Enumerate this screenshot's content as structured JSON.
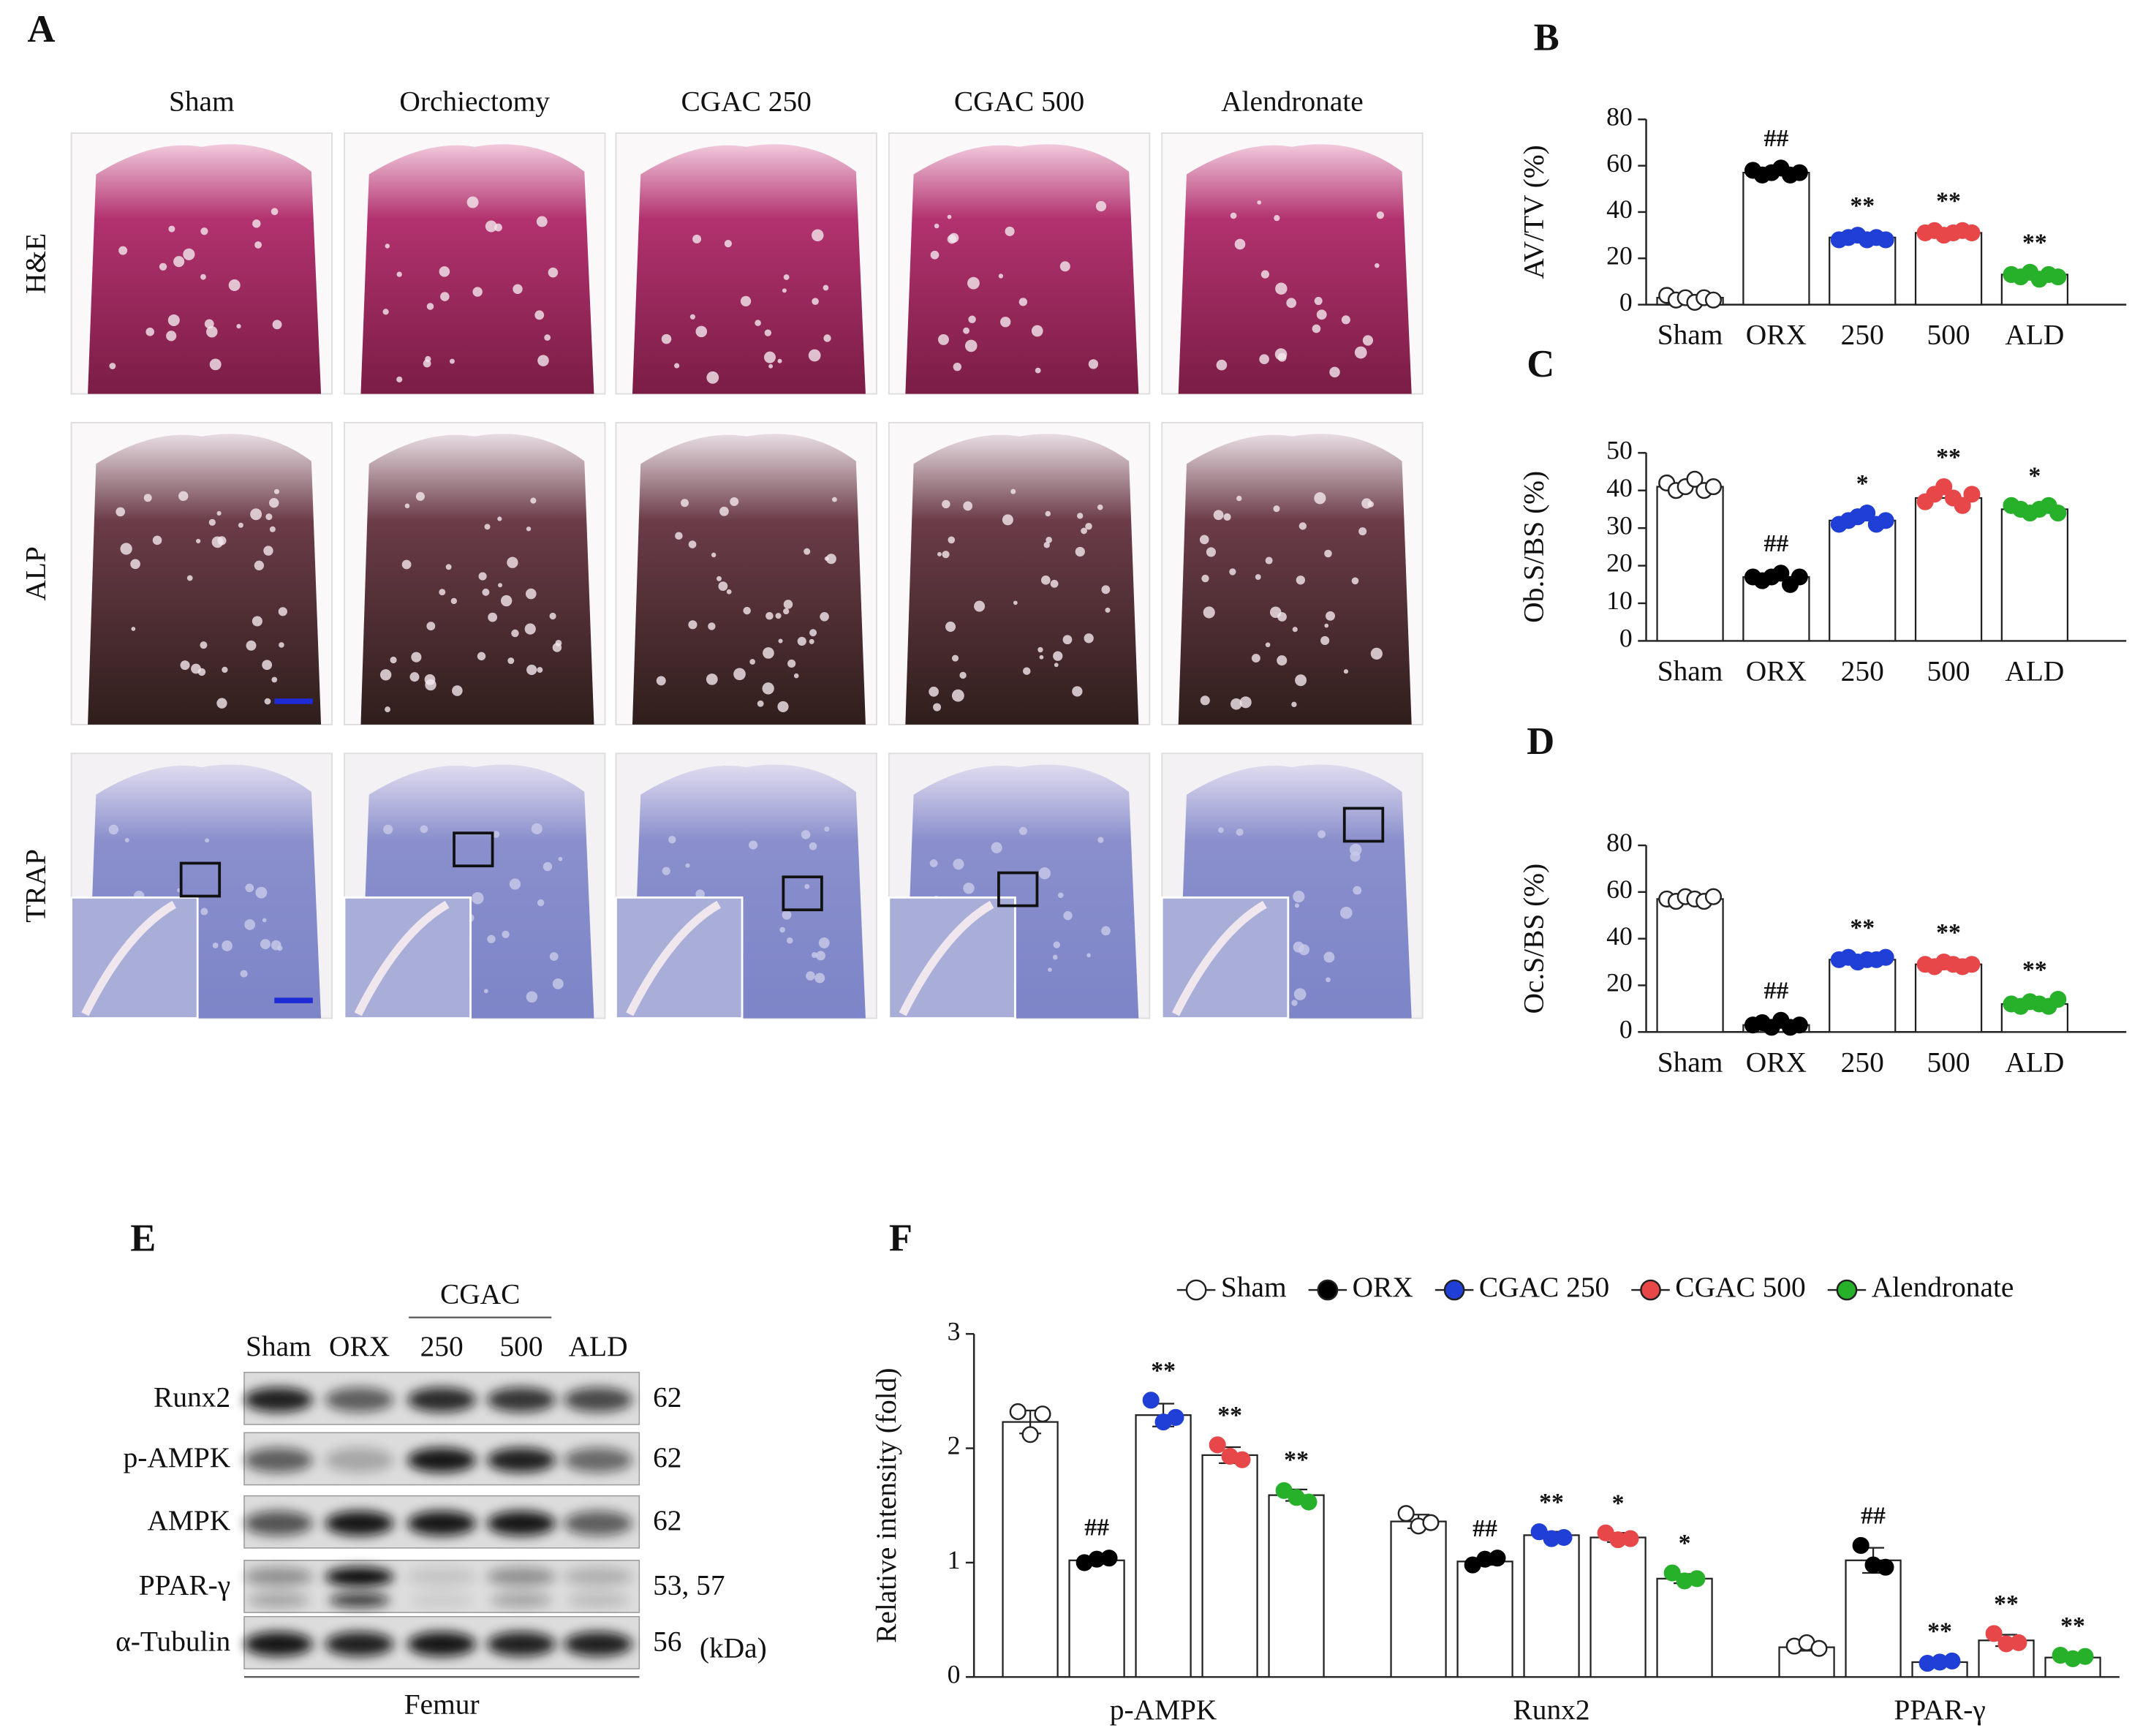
{
  "histology": {
    "panel": "A",
    "columns": [
      "Sham",
      "Orchiectomy",
      "CGAC 250",
      "CGAC 500",
      "Alendronate"
    ],
    "rows": [
      "H&E",
      "ALP",
      "TRAP"
    ]
  },
  "blot": {
    "panel": "E",
    "group": "CGAC",
    "lanes": [
      "Sham",
      "ORX",
      "250",
      "500",
      "ALD"
    ],
    "rows": [
      {
        "name": "Runx2",
        "kda": "62"
      },
      {
        "name": "p-AMPK",
        "kda": "62"
      },
      {
        "name": "AMPK",
        "kda": "62"
      },
      {
        "name": "PPAR-γ",
        "kda": "53, 57"
      },
      {
        "name": "α-Tubulin",
        "kda": "56"
      }
    ],
    "unit": "(kDa)",
    "tissue": "Femur"
  },
  "chart_data": [
    {
      "panel": "B",
      "type": "bar",
      "ylabel": "AV/TV (%)",
      "categories": [
        "Sham",
        "ORX",
        "250",
        "500",
        "ALD"
      ],
      "values": [
        3,
        57,
        29,
        31,
        13
      ],
      "points": [
        [
          4,
          2,
          3,
          1,
          3,
          2
        ],
        [
          58,
          56,
          57,
          59,
          56,
          57
        ],
        [
          28,
          29,
          30,
          28,
          29,
          28
        ],
        [
          31,
          32,
          30,
          31,
          32,
          31
        ],
        [
          13,
          12,
          14,
          11,
          13,
          12
        ]
      ],
      "point_colors": [
        "#ffffff",
        "#000000",
        "#1f3fd6",
        "#e8474a",
        "#27b02a"
      ],
      "annotations": [
        null,
        "##",
        "**",
        "**",
        "**"
      ],
      "ylim": [
        0,
        80
      ],
      "yticks": [
        0,
        20,
        40,
        60,
        80
      ]
    },
    {
      "panel": "C",
      "type": "bar",
      "ylabel": "Ob.S/BS (%)",
      "categories": [
        "Sham",
        "ORX",
        "250",
        "500",
        "ALD"
      ],
      "values": [
        41,
        17,
        32,
        38,
        35
      ],
      "points": [
        [
          42,
          40,
          41,
          43,
          40,
          41
        ],
        [
          17,
          16,
          17,
          18,
          15,
          17
        ],
        [
          31,
          32,
          33,
          34,
          31,
          32
        ],
        [
          37,
          39,
          41,
          38,
          36,
          39
        ],
        [
          36,
          35,
          34,
          35,
          36,
          34
        ]
      ],
      "point_colors": [
        "#ffffff",
        "#000000",
        "#1f3fd6",
        "#e8474a",
        "#27b02a"
      ],
      "annotations": [
        null,
        "##",
        "*",
        "**",
        "*"
      ],
      "ylim": [
        0,
        50
      ],
      "yticks": [
        0,
        10,
        20,
        30,
        40,
        50
      ]
    },
    {
      "panel": "D",
      "type": "bar",
      "ylabel": "Oc.S/BS (%)",
      "categories": [
        "Sham",
        "ORX",
        "250",
        "500",
        "ALD"
      ],
      "values": [
        57,
        3,
        31,
        29,
        12
      ],
      "points": [
        [
          57,
          56,
          58,
          57,
          56,
          58
        ],
        [
          3,
          4,
          2,
          5,
          2,
          3
        ],
        [
          31,
          32,
          30,
          31,
          31,
          32
        ],
        [
          29,
          28,
          30,
          29,
          28,
          29
        ],
        [
          12,
          11,
          13,
          12,
          11,
          14
        ]
      ],
      "point_colors": [
        "#ffffff",
        "#000000",
        "#1f3fd6",
        "#e8474a",
        "#27b02a"
      ],
      "annotations": [
        null,
        "##",
        "**",
        "**",
        "**"
      ],
      "ylim": [
        0,
        80
      ],
      "yticks": [
        0,
        20,
        40,
        60,
        80
      ]
    },
    {
      "panel": "F",
      "type": "grouped-bar",
      "ylabel": "Relative intensity (fold)",
      "categories": [
        "p-AMPK",
        "Runx2",
        "PPAR-γ"
      ],
      "series": [
        {
          "name": "Sham",
          "color": "#ffffff",
          "values": [
            2.23,
            1.36,
            0.26
          ],
          "errors": [
            0.1,
            0.06,
            0.03
          ],
          "points": [
            [
              2.32,
              2.12,
              2.3
            ],
            [
              1.43,
              1.32,
              1.35
            ],
            [
              0.27,
              0.3,
              0.25
            ]
          ],
          "annotations": [
            null,
            null,
            null
          ]
        },
        {
          "name": "ORX",
          "color": "#000000",
          "values": [
            1.02,
            1.01,
            1.02
          ],
          "errors": [
            0.03,
            0.03,
            0.11
          ],
          "points": [
            [
              1.0,
              1.03,
              1.04
            ],
            [
              0.98,
              1.03,
              1.04
            ],
            [
              1.15,
              0.98,
              0.96
            ]
          ],
          "annotations": [
            "##",
            "##",
            "##"
          ]
        },
        {
          "name": "CGAC 250",
          "color": "#1f3fd6",
          "values": [
            2.29,
            1.24,
            0.13
          ],
          "errors": [
            0.1,
            0.03,
            0.01
          ],
          "points": [
            [
              2.42,
              2.23,
              2.27
            ],
            [
              1.27,
              1.21,
              1.22
            ],
            [
              0.12,
              0.13,
              0.14
            ]
          ],
          "annotations": [
            "**",
            "**",
            "**"
          ]
        },
        {
          "name": "CGAC 500",
          "color": "#e8474a",
          "values": [
            1.94,
            1.22,
            0.32
          ],
          "errors": [
            0.07,
            0.04,
            0.05
          ],
          "points": [
            [
              2.03,
              1.93,
              1.9
            ],
            [
              1.26,
              1.2,
              1.21
            ],
            [
              0.38,
              0.29,
              0.3
            ]
          ],
          "annotations": [
            "**",
            "*",
            "**"
          ]
        },
        {
          "name": "Alendronate",
          "color": "#27b02a",
          "values": [
            1.59,
            0.86,
            0.17
          ],
          "errors": [
            0.05,
            0.04,
            0.02
          ],
          "points": [
            [
              1.63,
              1.57,
              1.53
            ],
            [
              0.91,
              0.84,
              0.86
            ],
            [
              0.19,
              0.16,
              0.18
            ]
          ],
          "annotations": [
            "**",
            "*",
            "**"
          ]
        }
      ],
      "ylim": [
        0,
        3
      ],
      "yticks": [
        0,
        1,
        2,
        3
      ],
      "legend": "top"
    }
  ]
}
